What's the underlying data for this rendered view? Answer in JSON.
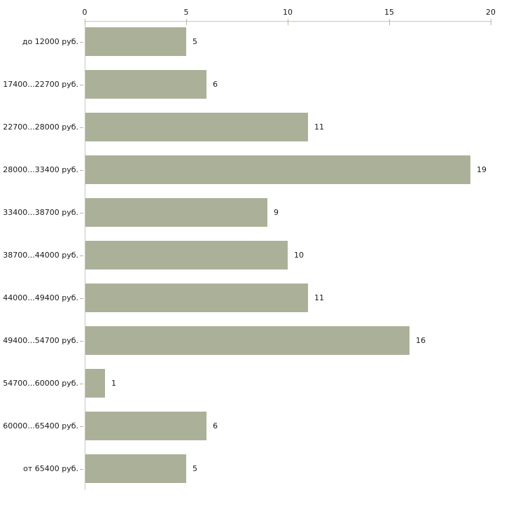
{
  "chart_data": {
    "type": "bar",
    "orientation": "horizontal",
    "title": "",
    "xlabel": "",
    "ylabel": "",
    "categories": [
      "до 12000 руб.",
      "17400...22700 руб.",
      "22700...28000 руб.",
      "28000...33400 руб.",
      "33400...38700 руб.",
      "38700...44000 руб.",
      "44000...49400 руб.",
      "49400...54700 руб.",
      "54700...60000 руб.",
      "60000...65400 руб.",
      "от 65400 руб."
    ],
    "values": [
      5,
      6,
      11,
      19,
      9,
      10,
      11,
      16,
      1,
      6,
      5
    ],
    "value_labels_shown": true,
    "xlim": [
      0,
      20
    ],
    "x_ticks": [
      0,
      5,
      10,
      15,
      20
    ],
    "x_axis_position": "top",
    "grid": false,
    "legend": false,
    "colors": {
      "bar_fill": "#abb198",
      "axis_line": "#c6c6c6",
      "x_tick_mark": "#b6ba97",
      "category_tick_mark": "#c8ab92",
      "text": "#1a1a1a",
      "background": "#ffffff"
    }
  }
}
